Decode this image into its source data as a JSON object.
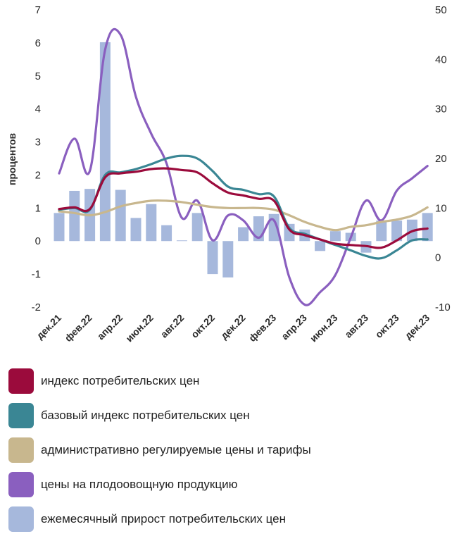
{
  "chart_data": {
    "type": "bar+line",
    "title": "",
    "ylabel": "процентов",
    "y_left": {
      "min": -2,
      "max": 7,
      "ticks": [
        "-2",
        "-1",
        "0",
        "1",
        "2",
        "3",
        "4",
        "5",
        "6",
        "7"
      ]
    },
    "y_right": {
      "min": -10,
      "max": 50,
      "ticks": [
        "-10",
        "0",
        "10",
        "20",
        "30",
        "40",
        "50"
      ]
    },
    "x_tick_labels": [
      "дек.21",
      "фев.22",
      "апр.22",
      "июн.22",
      "авг.22",
      "окт.22",
      "дек.22",
      "фев.23",
      "апр.23",
      "июн.23",
      "авг.23",
      "окт.23",
      "дек.23"
    ],
    "months": [
      "дек.21",
      "янв.22",
      "фев.22",
      "мар.22",
      "апр.22",
      "май.22",
      "июн.22",
      "июл.22",
      "авг.22",
      "сен.22",
      "окт.22",
      "ноя.22",
      "дек.22",
      "янв.23",
      "фев.23",
      "мар.23",
      "апр.23",
      "май.23",
      "июн.23",
      "июл.23",
      "авг.23",
      "сен.23",
      "окт.23",
      "ноя.23",
      "дек.23"
    ],
    "series": [
      {
        "name": "индекс потребительских цен",
        "axis": "left",
        "kind": "line",
        "color": "#9b0b3c",
        "values": [
          0.97,
          1.02,
          0.97,
          1.93,
          2.05,
          2.1,
          2.18,
          2.2,
          2.15,
          2.08,
          1.75,
          1.47,
          1.38,
          1.28,
          1.22,
          0.35,
          0.18,
          0.05,
          -0.08,
          -0.12,
          -0.15,
          -0.2,
          0.02,
          0.3,
          0.38
        ]
      },
      {
        "name": "базовый индекс потребительских цен",
        "axis": "left",
        "kind": "line",
        "color": "#3a8694",
        "values": [
          0.95,
          1.0,
          0.95,
          2.0,
          2.08,
          2.18,
          2.33,
          2.5,
          2.58,
          2.5,
          2.12,
          1.65,
          1.55,
          1.42,
          1.35,
          0.4,
          0.22,
          0.05,
          -0.12,
          -0.28,
          -0.45,
          -0.52,
          -0.28,
          0.02,
          0.05
        ]
      },
      {
        "name": "административно регулируемые цены и тарифы",
        "axis": "left",
        "kind": "line",
        "color": "#c8b78e",
        "values": [
          0.9,
          0.85,
          0.78,
          0.88,
          1.05,
          1.15,
          1.22,
          1.22,
          1.18,
          1.1,
          1.03,
          1.0,
          1.0,
          1.0,
          0.95,
          0.78,
          0.58,
          0.43,
          0.33,
          0.43,
          0.48,
          0.58,
          0.65,
          0.77,
          1.02
        ]
      },
      {
        "name": "цены на плодоовощную продукцию",
        "axis": "right",
        "kind": "line",
        "color": "#8a5fbf",
        "values": [
          17,
          24,
          17.5,
          42,
          45,
          32.5,
          25,
          19,
          8,
          11.5,
          3.5,
          8.5,
          7.5,
          4,
          7.5,
          -4,
          -9.5,
          -7,
          -3.5,
          4,
          11.5,
          7.5,
          13.5,
          16,
          18.5
        ]
      },
      {
        "name": "ежемесячный прирост потребительских цен",
        "axis": "left",
        "kind": "bar",
        "color": "#a6b8dc",
        "values": [
          0.85,
          1.52,
          1.58,
          6.02,
          1.55,
          0.7,
          1.12,
          0.48,
          0.02,
          0.85,
          -1.0,
          -1.1,
          0.42,
          0.75,
          0.82,
          0.52,
          0.35,
          -0.3,
          0.3,
          0.25,
          -0.35,
          0.62,
          0.62,
          0.65,
          0.85
        ]
      }
    ],
    "legend": [
      {
        "label": "индекс потребительских цен",
        "color": "#9b0b3c"
      },
      {
        "label": "базовый индекс потребительских цен",
        "color": "#3a8694"
      },
      {
        "label": "административно регулируемые цены и тарифы",
        "color": "#c8b78e"
      },
      {
        "label": "цены на плодоовощную продукцию",
        "color": "#8a5fbf"
      },
      {
        "label": "ежемесячный прирост потребительских цен",
        "color": "#a6b8dc"
      }
    ],
    "legend_position": "bottom"
  }
}
